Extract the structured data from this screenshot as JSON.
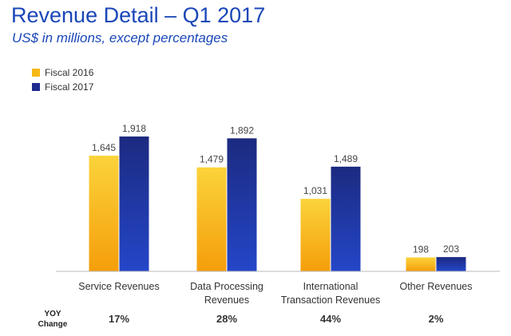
{
  "header": {
    "title": "Revenue Detail – Q1 2017",
    "subtitle": "US$ in millions, except percentages"
  },
  "colors": {
    "fiscal_2016": "#f7b814",
    "fiscal_2017": "#1f2a8f",
    "title": "#1a47b8"
  },
  "chart_data": {
    "type": "bar",
    "categories": [
      [
        "Service Revenues"
      ],
      [
        "Data Processing",
        "Revenues"
      ],
      [
        "International",
        "Transaction Revenues"
      ],
      [
        "Other Revenues"
      ]
    ],
    "series": [
      {
        "name": "Fiscal 2016",
        "values": [
          1645,
          1479,
          1031,
          198
        ],
        "labels": [
          "1,645",
          "1,479",
          "1,031",
          "198"
        ]
      },
      {
        "name": "Fiscal 2017",
        "values": [
          1918,
          1892,
          1489,
          203
        ],
        "labels": [
          "1,918",
          "1,892",
          "1,489",
          "203"
        ]
      }
    ],
    "title": "",
    "xlabel": "",
    "ylabel": "",
    "ylim": [
      0,
      2100
    ],
    "legend": "top-left",
    "grid": false
  },
  "yoy": {
    "label": "YOY Change",
    "values": [
      "17%",
      "28%",
      "44%",
      "2%"
    ]
  }
}
